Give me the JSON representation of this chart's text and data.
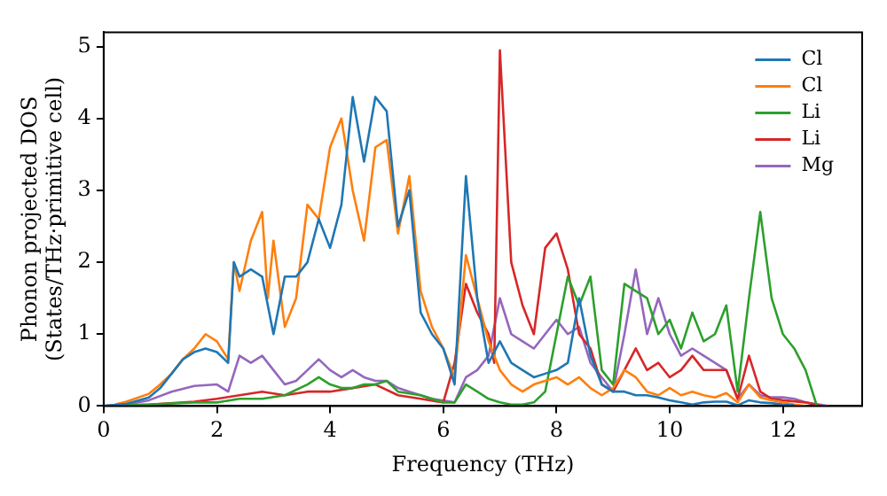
{
  "chart_data": {
    "type": "line",
    "xlabel": "Frequency (THz)",
    "ylabel": "Phonon projected DOS\n(States/THz·primitive cell)",
    "xlim": [
      0,
      13.4
    ],
    "ylim": [
      0,
      5.2
    ],
    "xticks": [
      0,
      2,
      4,
      6,
      8,
      10,
      12
    ],
    "yticks": [
      0,
      1,
      2,
      3,
      4,
      5
    ],
    "grid": false,
    "legend": "top right",
    "marker": "none",
    "line_style": "solid",
    "series": [
      {
        "name": "Cl",
        "color": "#1f77b4",
        "x": [
          0,
          0.4,
          0.8,
          1.0,
          1.2,
          1.4,
          1.6,
          1.8,
          2.0,
          2.2,
          2.3,
          2.4,
          2.6,
          2.8,
          3.0,
          3.2,
          3.4,
          3.6,
          3.8,
          4.0,
          4.2,
          4.4,
          4.6,
          4.8,
          5.0,
          5.2,
          5.4,
          5.6,
          5.8,
          6.0,
          6.2,
          6.4,
          6.6,
          6.8,
          7.0,
          7.2,
          7.4,
          7.6,
          7.8,
          8.0,
          8.2,
          8.4,
          8.6,
          8.8,
          9.0,
          9.2,
          9.4,
          9.6,
          9.8,
          10.0,
          10.2,
          10.4,
          10.6,
          10.8,
          11.0,
          11.2,
          11.4,
          11.6,
          11.8,
          12.0,
          12.2
        ],
        "values": [
          0,
          0.03,
          0.12,
          0.25,
          0.45,
          0.65,
          0.75,
          0.8,
          0.75,
          0.6,
          2.0,
          1.8,
          1.9,
          1.8,
          1.0,
          1.8,
          1.8,
          2.0,
          2.6,
          2.2,
          2.8,
          4.3,
          3.4,
          4.3,
          4.1,
          2.5,
          3.0,
          1.3,
          1.0,
          0.8,
          0.3,
          3.2,
          1.5,
          0.6,
          0.9,
          0.6,
          0.5,
          0.4,
          0.45,
          0.5,
          0.6,
          1.5,
          0.7,
          0.3,
          0.2,
          0.2,
          0.15,
          0.15,
          0.12,
          0.08,
          0.05,
          0.02,
          0.05,
          0.06,
          0.06,
          0.01,
          0.08,
          0.05,
          0.04,
          0.02,
          0.01
        ]
      },
      {
        "name": "Cl",
        "color": "#ff7f0e",
        "x": [
          0.2,
          0.4,
          0.8,
          1.0,
          1.2,
          1.4,
          1.6,
          1.8,
          2.0,
          2.2,
          2.3,
          2.4,
          2.6,
          2.8,
          2.9,
          3.0,
          3.2,
          3.4,
          3.6,
          3.8,
          4.0,
          4.2,
          4.4,
          4.6,
          4.8,
          5.0,
          5.2,
          5.4,
          5.6,
          5.8,
          6.0,
          6.2,
          6.4,
          6.6,
          6.8,
          7.0,
          7.2,
          7.4,
          7.6,
          7.8,
          8.0,
          8.2,
          8.4,
          8.6,
          8.8,
          9.0,
          9.2,
          9.4,
          9.6,
          9.8,
          10.0,
          10.2,
          10.4,
          10.6,
          10.8,
          11.0,
          11.2,
          11.4,
          11.6,
          11.8,
          12.0,
          12.2,
          12.4
        ],
        "values": [
          0.02,
          0.06,
          0.17,
          0.3,
          0.45,
          0.65,
          0.8,
          1.0,
          0.9,
          0.65,
          2.0,
          1.6,
          2.3,
          2.7,
          1.5,
          2.3,
          1.1,
          1.5,
          2.8,
          2.6,
          3.6,
          4.0,
          3.0,
          2.3,
          3.6,
          3.7,
          2.4,
          3.2,
          1.6,
          1.1,
          0.8,
          0.4,
          2.1,
          1.5,
          0.9,
          0.5,
          0.3,
          0.2,
          0.3,
          0.35,
          0.4,
          0.3,
          0.4,
          0.25,
          0.15,
          0.25,
          0.5,
          0.4,
          0.2,
          0.15,
          0.25,
          0.15,
          0.2,
          0.15,
          0.12,
          0.18,
          0.05,
          0.3,
          0.12,
          0.08,
          0.05,
          0.02,
          0
        ]
      },
      {
        "name": "Li",
        "color": "#2ca02c",
        "x": [
          0,
          0.8,
          1.6,
          2.0,
          2.4,
          2.8,
          3.2,
          3.6,
          3.8,
          4.0,
          4.2,
          4.4,
          4.6,
          4.8,
          5.0,
          5.2,
          5.6,
          6.0,
          6.2,
          6.4,
          6.6,
          6.8,
          7.0,
          7.2,
          7.4,
          7.6,
          7.8,
          8.0,
          8.2,
          8.4,
          8.6,
          8.8,
          9.0,
          9.2,
          9.4,
          9.6,
          9.8,
          10.0,
          10.2,
          10.4,
          10.6,
          10.8,
          11.0,
          11.2,
          11.4,
          11.6,
          11.8,
          12.0,
          12.2,
          12.4,
          12.6
        ],
        "values": [
          0,
          0.02,
          0.05,
          0.05,
          0.1,
          0.1,
          0.15,
          0.3,
          0.4,
          0.3,
          0.25,
          0.25,
          0.3,
          0.3,
          0.35,
          0.2,
          0.15,
          0.05,
          0.05,
          0.3,
          0.2,
          0.1,
          0.05,
          0.02,
          0.02,
          0.05,
          0.2,
          1.0,
          1.8,
          1.4,
          1.8,
          0.5,
          0.3,
          1.7,
          1.6,
          1.5,
          1.0,
          1.2,
          0.8,
          1.3,
          0.9,
          1.0,
          1.4,
          0.2,
          1.5,
          2.7,
          1.5,
          1.0,
          0.8,
          0.5,
          0
        ]
      },
      {
        "name": "Li",
        "color": "#d62728",
        "x": [
          0,
          0.8,
          1.6,
          2.0,
          2.4,
          2.8,
          3.2,
          3.6,
          4.0,
          4.4,
          4.8,
          5.2,
          5.6,
          6.0,
          6.2,
          6.4,
          6.6,
          6.8,
          6.9,
          7.0,
          7.2,
          7.4,
          7.6,
          7.8,
          8.0,
          8.2,
          8.4,
          8.6,
          8.8,
          9.0,
          9.2,
          9.4,
          9.6,
          9.8,
          10.0,
          10.2,
          10.4,
          10.6,
          10.8,
          11.0,
          11.2,
          11.4,
          11.6,
          11.8,
          12.0,
          12.4,
          12.7
        ],
        "values": [
          0,
          0.02,
          0.06,
          0.1,
          0.15,
          0.2,
          0.15,
          0.2,
          0.2,
          0.25,
          0.3,
          0.15,
          0.1,
          0.05,
          0.6,
          1.7,
          1.3,
          1.0,
          0.6,
          4.95,
          2.0,
          1.4,
          1.0,
          2.2,
          2.4,
          1.9,
          1.0,
          0.8,
          0.3,
          0.2,
          0.5,
          0.8,
          0.5,
          0.6,
          0.4,
          0.5,
          0.7,
          0.5,
          0.5,
          0.5,
          0.1,
          0.7,
          0.2,
          0.1,
          0.08,
          0.05,
          0
        ]
      },
      {
        "name": "Mg",
        "color": "#9467bd",
        "x": [
          0,
          0.4,
          0.8,
          1.2,
          1.6,
          2.0,
          2.2,
          2.4,
          2.6,
          2.8,
          3.0,
          3.2,
          3.4,
          3.6,
          3.8,
          4.0,
          4.2,
          4.4,
          4.6,
          4.8,
          5.0,
          5.2,
          5.4,
          5.8,
          6.2,
          6.4,
          6.6,
          6.8,
          7.0,
          7.2,
          7.4,
          7.6,
          7.8,
          8.0,
          8.2,
          8.4,
          8.6,
          8.8,
          9.0,
          9.2,
          9.4,
          9.6,
          9.8,
          10.0,
          10.2,
          10.4,
          10.6,
          10.8,
          11.0,
          11.2,
          11.4,
          11.6,
          11.8,
          12.0,
          12.2,
          12.4,
          12.8
        ],
        "values": [
          0,
          0.02,
          0.08,
          0.2,
          0.28,
          0.3,
          0.2,
          0.7,
          0.6,
          0.7,
          0.5,
          0.3,
          0.35,
          0.5,
          0.65,
          0.5,
          0.4,
          0.5,
          0.4,
          0.35,
          0.35,
          0.25,
          0.2,
          0.1,
          0.05,
          0.4,
          0.5,
          0.7,
          1.5,
          1.0,
          0.9,
          0.8,
          1.0,
          1.2,
          1.0,
          1.1,
          0.6,
          0.4,
          0.2,
          1.0,
          1.9,
          1.0,
          1.5,
          1.0,
          0.7,
          0.8,
          0.7,
          0.6,
          0.5,
          0.1,
          0.3,
          0.15,
          0.12,
          0.12,
          0.1,
          0.05,
          0
        ]
      }
    ]
  }
}
